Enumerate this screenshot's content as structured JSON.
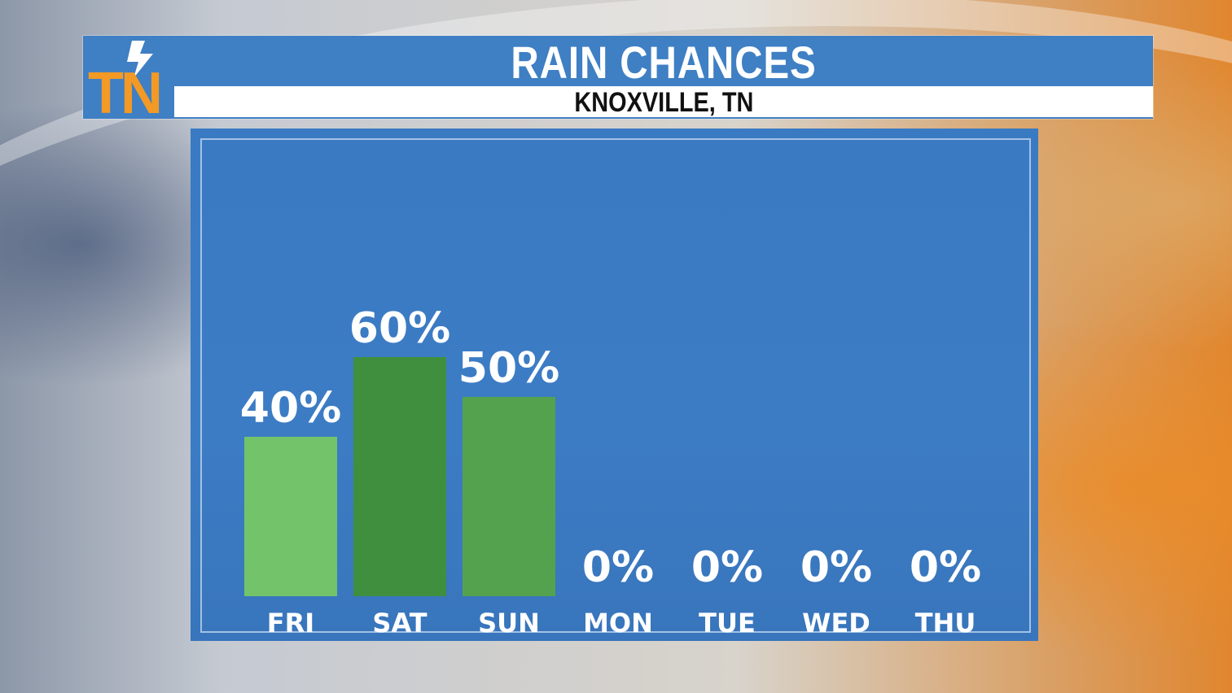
{
  "header": {
    "logo_text": "TN",
    "title": "RAIN CHANCES",
    "subtitle": "KNOXVILLE, TN"
  },
  "colors": {
    "panel": "#3c7cc4",
    "bar_low": "#73c36a",
    "bar_high": "#3f8f3e",
    "bar_mid": "#55a24e",
    "logo_orange": "#f29a25"
  },
  "chart_data": {
    "type": "bar",
    "categories": [
      "FRI",
      "SAT",
      "SUN",
      "MON",
      "TUE",
      "WED",
      "THU"
    ],
    "values": [
      40,
      60,
      50,
      0,
      0,
      0,
      0
    ],
    "value_labels": [
      "40%",
      "60%",
      "50%",
      "0%",
      "0%",
      "0%",
      "0%"
    ],
    "bar_colors": [
      "#73c36a",
      "#3f8f3e",
      "#55a24e",
      "#55a24e",
      "#55a24e",
      "#55a24e",
      "#55a24e"
    ],
    "ylim": [
      0,
      100
    ],
    "grid": false,
    "title": "RAIN CHANCES",
    "xlabel": "",
    "ylabel": ""
  }
}
